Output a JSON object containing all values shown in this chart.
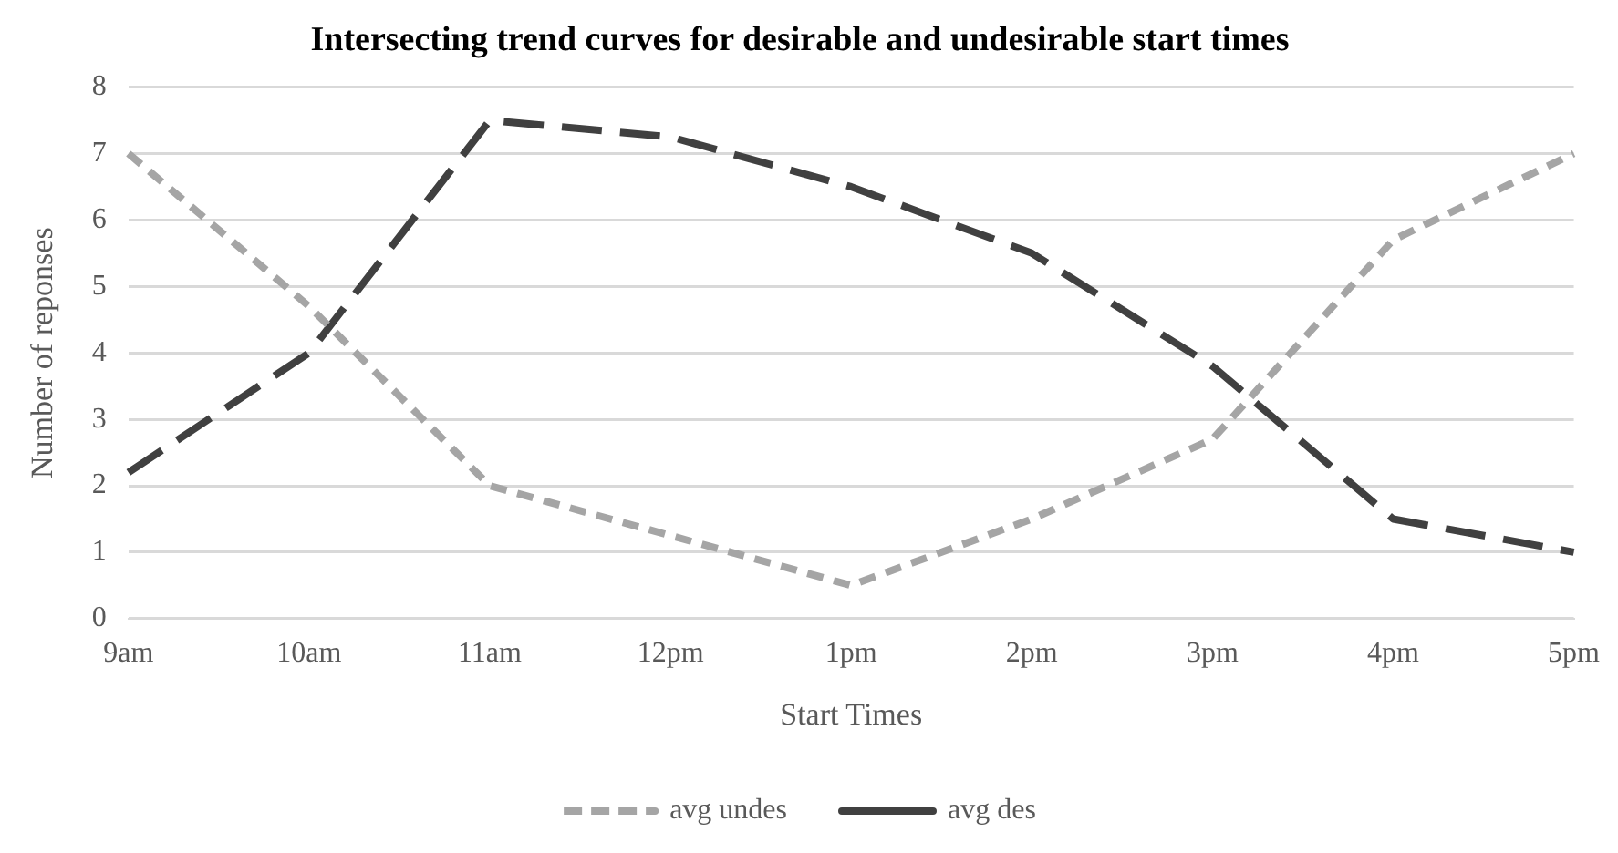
{
  "chart_data": {
    "type": "line",
    "title": "Intersecting trend curves for desirable and undesirable start times",
    "xlabel": "Start Times",
    "ylabel": "Number of reponses",
    "categories": [
      "9am",
      "10am",
      "11am",
      "12pm",
      "1pm",
      "2pm",
      "3pm",
      "4pm",
      "5pm"
    ],
    "series": [
      {
        "name": "avg undes",
        "color": "#a5a5a5",
        "line_style": "dashed",
        "values": [
          7.0,
          4.7,
          2.0,
          1.25,
          0.5,
          1.5,
          2.7,
          5.7,
          7.0
        ]
      },
      {
        "name": "avg des",
        "color": "#404040",
        "line_style": "dashed",
        "values": [
          2.2,
          4.0,
          7.5,
          7.25,
          6.5,
          5.5,
          3.8,
          1.5,
          1.0
        ]
      }
    ],
    "ylim": [
      0,
      8
    ],
    "yticks": [
      0,
      1,
      2,
      3,
      4,
      5,
      6,
      7,
      8
    ],
    "grid": "y",
    "legend": "bottom",
    "marker": "none"
  }
}
